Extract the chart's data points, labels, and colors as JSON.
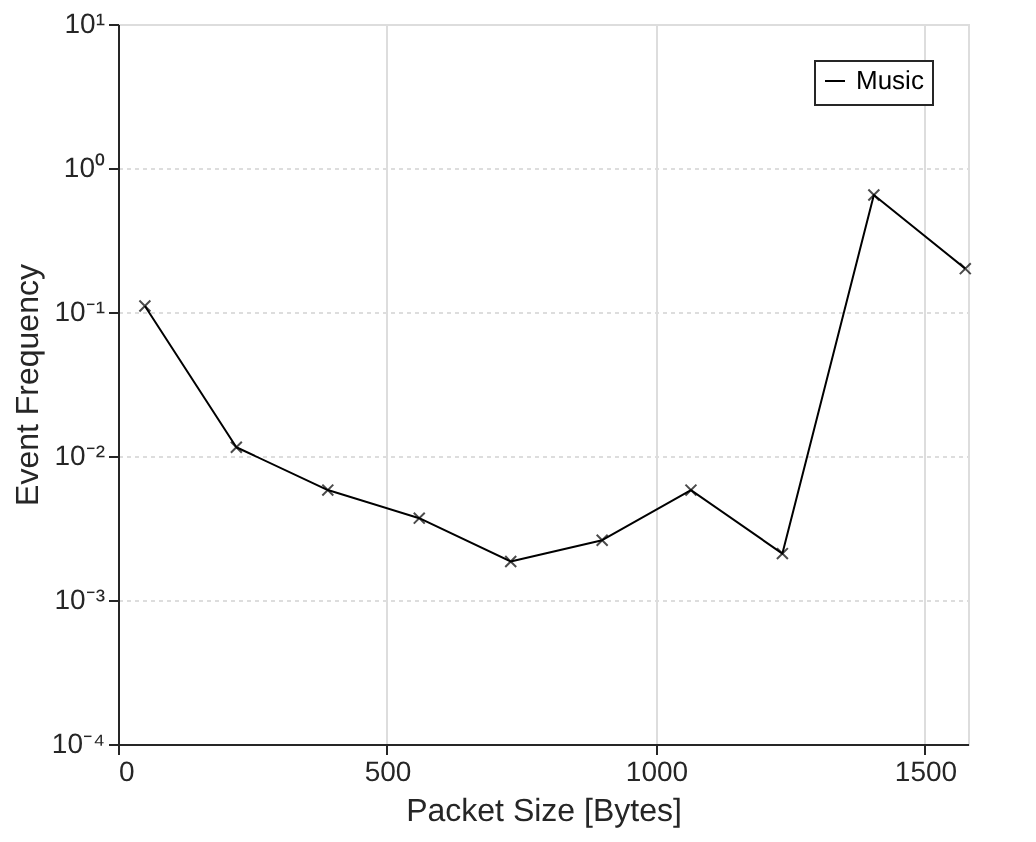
{
  "chart_data": {
    "type": "line",
    "xlabel": "Packet Size [Bytes]",
    "ylabel": "Event Frequency",
    "x": [
      50,
      220,
      390,
      560,
      730,
      900,
      1065,
      1235,
      1405,
      1575
    ],
    "series": [
      {
        "name": "Music",
        "color": "#000000",
        "values": [
          0.11,
          0.0115,
          0.0058,
          0.0037,
          0.00185,
          0.0026,
          0.0058,
          0.0021,
          0.65,
          0.2
        ]
      }
    ],
    "xlim": [
      0,
      1580
    ],
    "xticks": [
      0,
      500,
      1000,
      1500
    ],
    "ylim": [
      0.0001,
      10
    ],
    "yticks": [
      {
        "value": 0.0001,
        "label": "10⁻⁴"
      },
      {
        "value": 0.001,
        "label": "10⁻³"
      },
      {
        "value": 0.01,
        "label": "10⁻²"
      },
      {
        "value": 0.1,
        "label": "10⁻¹"
      },
      {
        "value": 1,
        "label": "10⁰"
      },
      {
        "value": 10,
        "label": "10¹"
      }
    ],
    "log": true,
    "grid": true,
    "legend": "top right",
    "marker": "cross",
    "line_style": "solid"
  }
}
